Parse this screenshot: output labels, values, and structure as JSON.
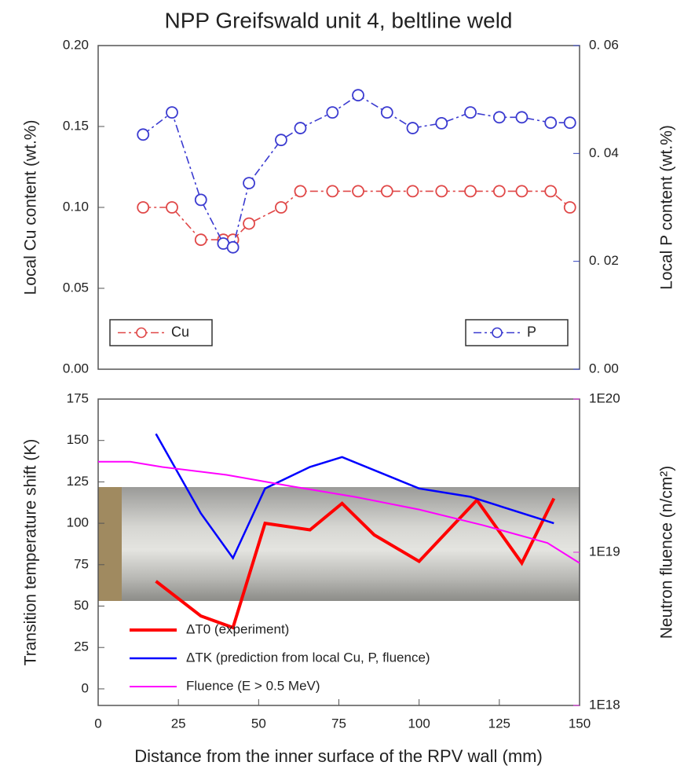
{
  "chart_data": [
    {
      "type": "line",
      "title": "NPP Greifswald unit 4, beltline weld",
      "x": [
        14,
        23,
        32,
        39,
        42,
        47,
        57,
        63,
        73,
        81,
        90,
        98,
        107,
        116,
        125,
        132,
        141,
        147
      ],
      "xlim": [
        0,
        150
      ],
      "ylim": [
        0,
        0.2
      ],
      "yticks": [
        {
          "value": 0,
          "label": "0.00"
        },
        {
          "value": 0.05,
          "label": "0.05"
        },
        {
          "value": 0.1,
          "label": "0.10"
        },
        {
          "value": 0.15,
          "label": "0.15"
        },
        {
          "value": 0.2,
          "label": "0.20"
        }
      ],
      "y2lim": [
        0,
        0.06
      ],
      "y2ticks": [
        {
          "value": 0,
          "label": "0. 00"
        },
        {
          "value": 0.02,
          "label": "0. 02"
        },
        {
          "value": 0.04,
          "label": "0. 04"
        },
        {
          "value": 0.06,
          "label": "0. 06"
        }
      ],
      "ylabel": "Local Cu content  (wt.%)",
      "ylabel_color": "#d42020",
      "y2label": "Local P content  (wt.%)",
      "y2label_color": "#2f3fc0",
      "legend_box": true,
      "series": [
        {
          "name": "Cu",
          "color": "#e04848",
          "linestyle": "dashdot",
          "marker": "o",
          "legend": "lower left",
          "values": [
            0.1,
            0.1,
            0.08,
            0.08,
            0.08,
            0.09,
            0.1,
            0.11,
            0.11,
            0.11,
            0.11,
            0.11,
            0.11,
            0.11,
            0.11,
            0.11,
            0.11,
            0.1
          ]
        },
        {
          "name": "P",
          "color": "#3b3bd0",
          "linestyle": "dashdot",
          "marker": "o",
          "legend": "lower right",
          "axis": "y2",
          "values": [
            0.0435,
            0.0476,
            0.0314,
            0.0233,
            0.0226,
            0.0345,
            0.0425,
            0.0447,
            0.0476,
            0.0508,
            0.0476,
            0.0447,
            0.0456,
            0.0476,
            0.0467,
            0.0467,
            0.0457,
            0.0457
          ]
        }
      ]
    },
    {
      "type": "line",
      "xlabel": "Distance from the inner surface of the RPV wall (mm)",
      "xlim": [
        0,
        150
      ],
      "xticks": [
        0,
        25,
        50,
        75,
        100,
        125,
        150
      ],
      "ylim": [
        -10,
        175
      ],
      "yticks": [
        0,
        25,
        50,
        75,
        100,
        125,
        150,
        175
      ],
      "y2lim": [
        1e+18,
        1e+20
      ],
      "y2scale": "log",
      "y2ticks": [
        {
          "value": 1e+18,
          "label": "1E18"
        },
        {
          "value": 1e+19,
          "label": "1E19"
        },
        {
          "value": 1e+20,
          "label": "1E20"
        }
      ],
      "ylabel": "Transition temperature shift  (K)",
      "ylabel_color": "#000000",
      "y2label": "Neutron fluence  (n/cm²)",
      "y2label_color": "#e020e0",
      "legend_box": false,
      "series": [
        {
          "name": "ΔT0 (experiment)",
          "color": "#ff0000",
          "linestyle": "solid",
          "width": 4,
          "legend": "lower left",
          "x": [
            18,
            32,
            42,
            52,
            66,
            76,
            86,
            100,
            118,
            132,
            142
          ],
          "values": [
            65,
            44,
            37,
            100,
            96,
            112,
            93,
            77,
            114,
            76,
            115
          ]
        },
        {
          "name": "ΔTK (prediction from local Cu, P, fluence)",
          "color": "#0000ff",
          "linestyle": "solid",
          "width": 2.5,
          "legend": "lower left",
          "x": [
            18,
            32,
            42,
            52,
            66,
            76,
            100,
            116,
            142
          ],
          "values": [
            154,
            106,
            79,
            121,
            134,
            140,
            121,
            116,
            100
          ]
        },
        {
          "name": "Fluence (E > 0.5 MeV)",
          "color": "#ff00ff",
          "linestyle": "solid",
          "width": 2,
          "legend": "lower left",
          "axis": "y2",
          "x": [
            0,
            10,
            20,
            40,
            60,
            80,
            100,
            120,
            140,
            150
          ],
          "values": [
            3.9e+19,
            3.9e+19,
            3.6e+19,
            3.2e+19,
            2.7e+19,
            2.3e+19,
            1.9e+19,
            1.5e+19,
            1.15e+19,
            8.5e+18
          ]
        }
      ]
    }
  ]
}
